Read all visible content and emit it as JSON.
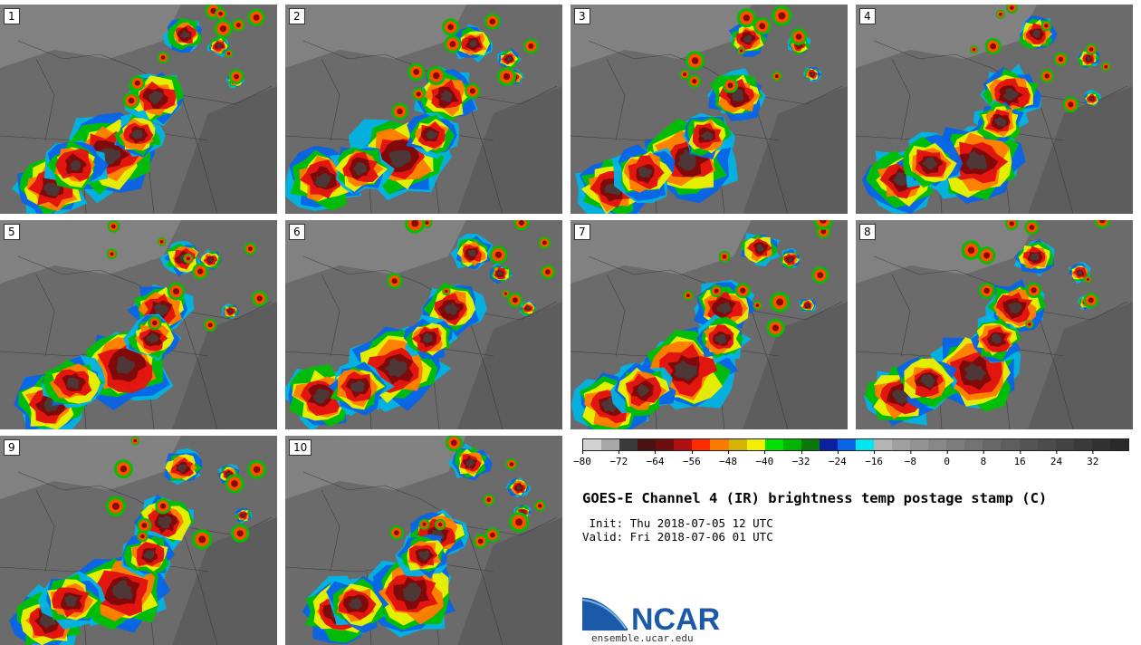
{
  "panels": [
    {
      "label": "1"
    },
    {
      "label": "2"
    },
    {
      "label": "3"
    },
    {
      "label": "4"
    },
    {
      "label": "5"
    },
    {
      "label": "6"
    },
    {
      "label": "7"
    },
    {
      "label": "8"
    },
    {
      "label": "9"
    },
    {
      "label": "10"
    }
  ],
  "colorbar": {
    "tick_labels": [
      "−80",
      "−72",
      "−64",
      "−56",
      "−48",
      "−40",
      "−32",
      "−24",
      "−16",
      "−8",
      "0",
      "8",
      "16",
      "24",
      "32"
    ],
    "tick_values": [
      -80,
      -72,
      -64,
      -56,
      -48,
      -40,
      -32,
      -24,
      -16,
      -8,
      0,
      8,
      16,
      24,
      32
    ],
    "range": [
      -80,
      40
    ],
    "colors": [
      "#d2d2d2",
      "#a8a8a8",
      "#3a3a3a",
      "#4a1414",
      "#6e0e0e",
      "#b01010",
      "#ff2a00",
      "#ff7a00",
      "#d4b400",
      "#f0f000",
      "#00e000",
      "#00b400",
      "#087808",
      "#0a20a0",
      "#0a64e6",
      "#00e6f0",
      "#b4b4b4",
      "#a0a0a0",
      "#949494",
      "#888888",
      "#7c7c7c",
      "#727272",
      "#686868",
      "#5e5e5e",
      "#555555",
      "#4c4c4c",
      "#434343",
      "#3a3a3a",
      "#323232",
      "#2a2a2a"
    ]
  },
  "title": "GOES-E Channel 4 (IR) brightness temp postage stamp (C)",
  "init_text": " Init: Thu 2018-07-05 12 UTC",
  "valid_text": "Valid: Fri 2018-07-06 01 UTC",
  "logo": {
    "text": "NCAR",
    "url": "ensemble.ucar.edu",
    "color": "#1a5aa8"
  }
}
